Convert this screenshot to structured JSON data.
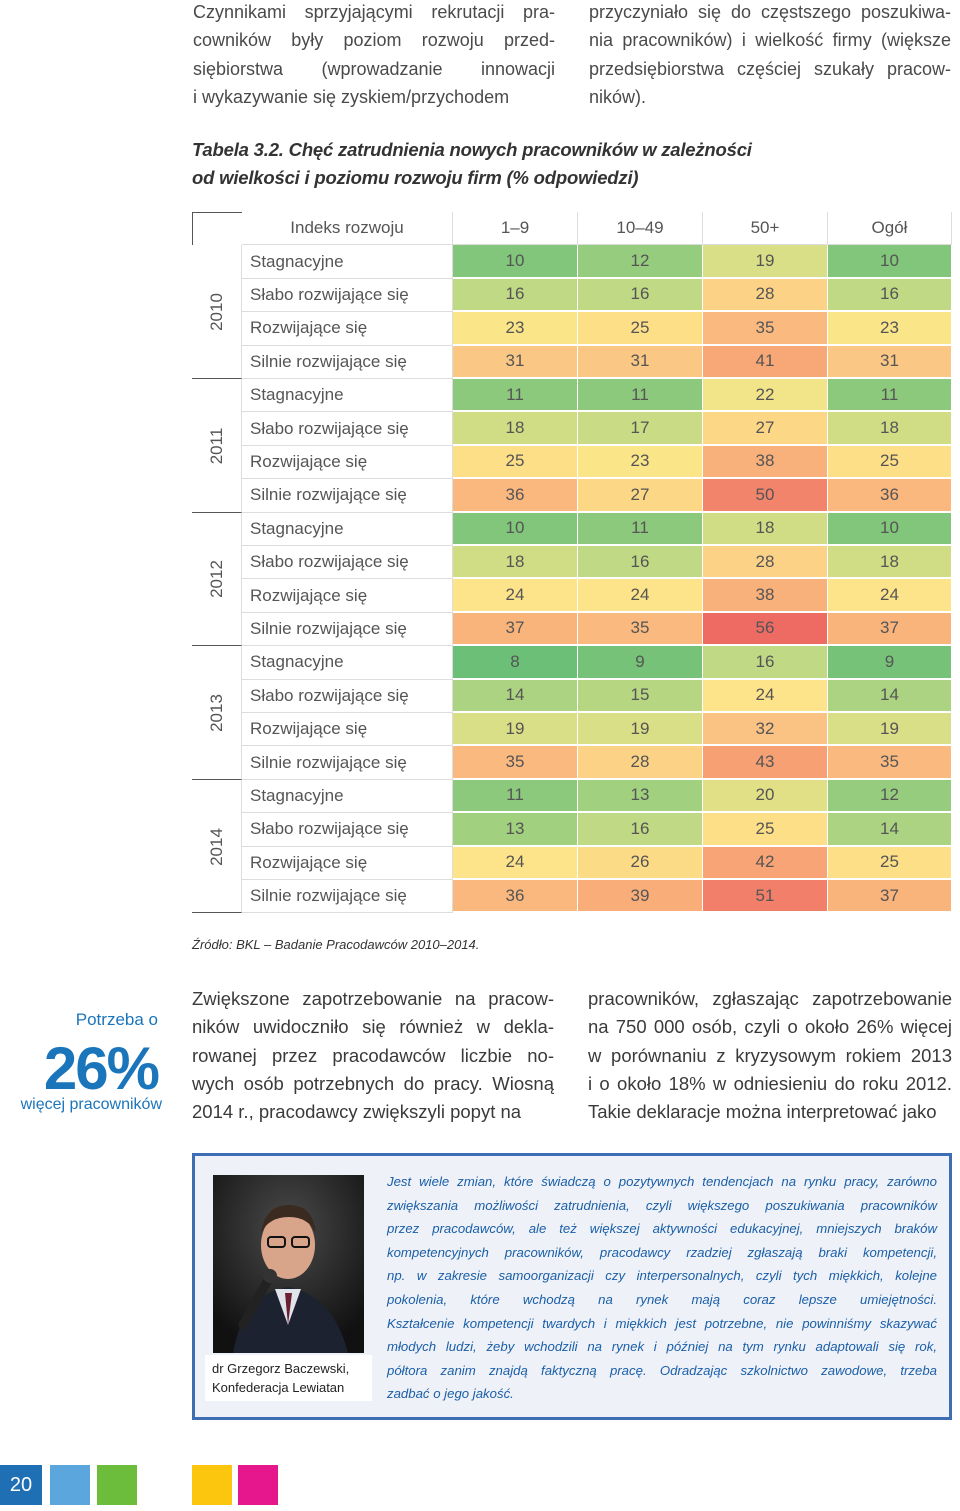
{
  "top_text": {
    "left": [
      "Czynnikami sprzyjającymi rekrutacji pra-",
      "cowników były poziom rozwoju przed-",
      "siębiorstwa (wprowadzanie innowacji",
      "i wykazywanie się zyskiem/przychodem"
    ],
    "right": [
      "przyczyniało się do częstszego poszukiwa-",
      "nia pracowników) i wielkość firmy (większe",
      "przedsiębiorstwa częściej szukały pracow-",
      "ników)."
    ]
  },
  "table": {
    "caption": [
      "Tabela 3.2. Chęć zatrudnienia nowych pracowników w zależności",
      "od wielkości i poziomu rozwoju firm (% odpowiedzi)"
    ],
    "header": [
      "Indeks rozwoju",
      "1–9",
      "10–49",
      "50+",
      "Ogół"
    ],
    "groups": [
      {
        "year": "2010",
        "rows": [
          {
            "label": "Stagnacyjne",
            "values": [
              10,
              12,
              19,
              10
            ]
          },
          {
            "label": "Słabo rozwijające się",
            "values": [
              16,
              16,
              28,
              16
            ]
          },
          {
            "label": "Rozwijające się",
            "values": [
              23,
              25,
              35,
              23
            ]
          },
          {
            "label": "Silnie rozwijające się",
            "values": [
              31,
              31,
              41,
              31
            ]
          }
        ]
      },
      {
        "year": "2011",
        "rows": [
          {
            "label": "Stagnacyjne",
            "values": [
              11,
              11,
              22,
              11
            ]
          },
          {
            "label": "Słabo rozwijające się",
            "values": [
              18,
              17,
              27,
              18
            ]
          },
          {
            "label": "Rozwijające się",
            "values": [
              25,
              23,
              38,
              25
            ]
          },
          {
            "label": "Silnie rozwijające się",
            "values": [
              36,
              27,
              50,
              36
            ]
          }
        ]
      },
      {
        "year": "2012",
        "rows": [
          {
            "label": "Stagnacyjne",
            "values": [
              10,
              11,
              18,
              10
            ]
          },
          {
            "label": "Słabo rozwijające się",
            "values": [
              18,
              16,
              28,
              18
            ]
          },
          {
            "label": "Rozwijające się",
            "values": [
              24,
              24,
              38,
              24
            ]
          },
          {
            "label": "Silnie rozwijające się",
            "values": [
              37,
              35,
              56,
              37
            ]
          }
        ]
      },
      {
        "year": "2013",
        "rows": [
          {
            "label": "Stagnacyjne",
            "values": [
              8,
              9,
              16,
              9
            ]
          },
          {
            "label": "Słabo rozwijające się",
            "values": [
              14,
              15,
              24,
              14
            ]
          },
          {
            "label": "Rozwijające się",
            "values": [
              19,
              19,
              32,
              19
            ]
          },
          {
            "label": "Silnie rozwijające się",
            "values": [
              35,
              28,
              43,
              35
            ]
          }
        ]
      },
      {
        "year": "2014",
        "rows": [
          {
            "label": "Stagnacyjne",
            "values": [
              11,
              13,
              20,
              12
            ]
          },
          {
            "label": "Słabo rozwijające się",
            "values": [
              13,
              16,
              25,
              14
            ]
          },
          {
            "label": "Rozwijające się",
            "values": [
              24,
              26,
              42,
              25
            ]
          },
          {
            "label": "Silnie rozwijające się",
            "values": [
              36,
              39,
              51,
              37
            ]
          }
        ]
      }
    ],
    "source": "Źródło: BKL – Badanie Pracodawców 2010–2014."
  },
  "sidebar": {
    "lead": "Potrzeba o",
    "figure": "26%",
    "tail": "więcej pracowników"
  },
  "body": {
    "left": [
      "Zwiększone zapotrzebowanie na pracow-",
      "ników uwidoczniło się również w dekla-",
      "rowanej przez pracodawców liczbie no-",
      "wych osób potrzebnych do pracy. Wiosną",
      "2014 r., pracodawcy zwiększyli popyt na"
    ],
    "right": [
      "pracowników, zgłaszając zapotrzebowanie",
      "na 750 000 osób, czyli o około 26% więcej",
      "w porównaniu z kryzysowym rokiem 2013",
      "i o około 18% w odniesieniu do roku 2012.",
      "Takie deklaracje można interpretować jako"
    ]
  },
  "quote": {
    "author": [
      "dr Grzegorz Baczewski,",
      "Konfederacja Lewiatan"
    ],
    "lines": [
      "Jest wiele zmian, które świadczą o pozytywnych tendencjach na rynku pracy, zarówno",
      "zwiększania możliwości zatrudnienia, czyli większego poszukiwania pracowników",
      "przez pracodawców, ale też większej aktywności edukacyjnej, mniejszych braków",
      "kompetencyjnych pracowników, pracodawcy rzadziej zgłaszają braki kompetencji,",
      "np. w zakresie samoorganizacji czy interpersonalnych, czyli tych miękkich, kolejne",
      "pokolenia, które wchodzą na rynek mają coraz lepsze umiejętności.",
      "Kształcenie kompetencji twardych i miękkich jest potrzebne, nie powinniśmy skazywać",
      "młodych ludzi, żeby wchodzili na rynek i później na tym rynku adaptowali się rok,",
      "półtora zanim znajdą faktyczną pracę. Odradzając szkolnictwo zawodowe, trzeba",
      "zadbać o jego jakość."
    ]
  },
  "page_number": 20
}
